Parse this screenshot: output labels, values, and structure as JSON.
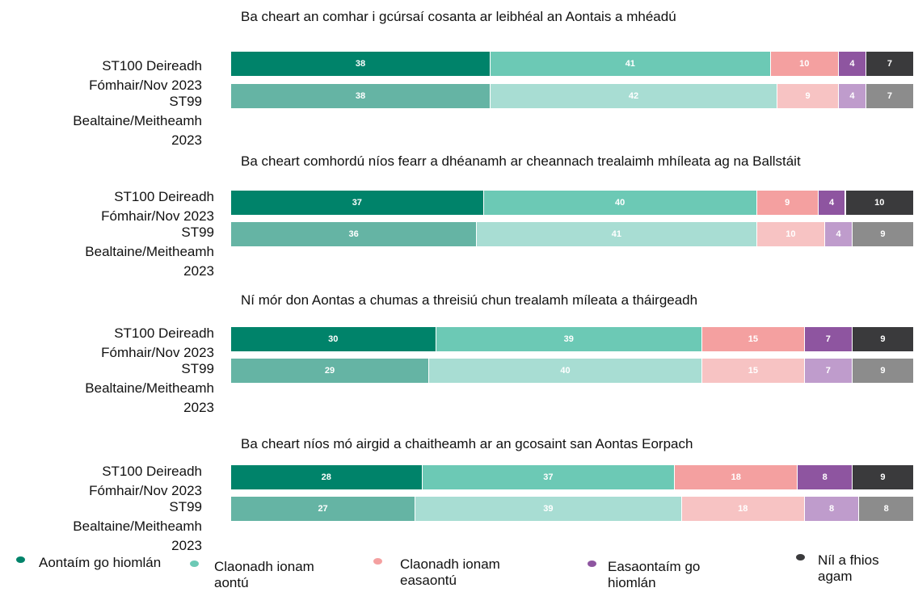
{
  "chart_data": {
    "type": "bar",
    "stacked": true,
    "orientation": "horizontal",
    "categories": [
      "ST100 Deireadh Fómhair/Nov 2023",
      "ST99 Bealtaine/Meitheamh 2023"
    ],
    "series": [
      {
        "name": "Aontaím go hiomlán",
        "colors": [
          "#00836a",
          "#65b4a4"
        ]
      },
      {
        "name": "Claonadh ionam aontú",
        "colors": [
          "#6cc9b5",
          "#a8ddd3"
        ]
      },
      {
        "name": "Claonadh ionam easaontú",
        "colors": [
          "#f4a0a0",
          "#f7c3c3"
        ]
      },
      {
        "name": "Easaontaím go hiomlán",
        "colors": [
          "#8e55a0",
          "#bf9ccc"
        ]
      },
      {
        "name": "Níl a fhios agam",
        "colors": [
          "#3a3a3c",
          "#8c8c8c"
        ]
      }
    ],
    "panels": [
      {
        "title": "Ba cheart an comhar i gcúrsaí cosanta ar leibhéal an Aontais a mhéadú",
        "values": [
          [
            38,
            41,
            10,
            4,
            7
          ],
          [
            38,
            42,
            9,
            4,
            7
          ]
        ]
      },
      {
        "title": "Ba cheart comhordú níos fearr a dhéanamh ar cheannach trealaimh mhíleata ag na Ballstáit",
        "values": [
          [
            37,
            40,
            9,
            4,
            10
          ],
          [
            36,
            41,
            10,
            4,
            9
          ]
        ]
      },
      {
        "title": "Ní mór don Aontas a chumas a threisiú chun trealamh míleata a tháirgeadh",
        "values": [
          [
            30,
            39,
            15,
            7,
            9
          ],
          [
            29,
            40,
            15,
            7,
            9
          ]
        ]
      },
      {
        "title": "Ba cheart níos mó airgid a chaitheamh ar an gcosaint san Aontas Eorpach",
        "values": [
          [
            28,
            37,
            18,
            8,
            9
          ],
          [
            27,
            39,
            18,
            8,
            8
          ]
        ]
      }
    ]
  }
}
